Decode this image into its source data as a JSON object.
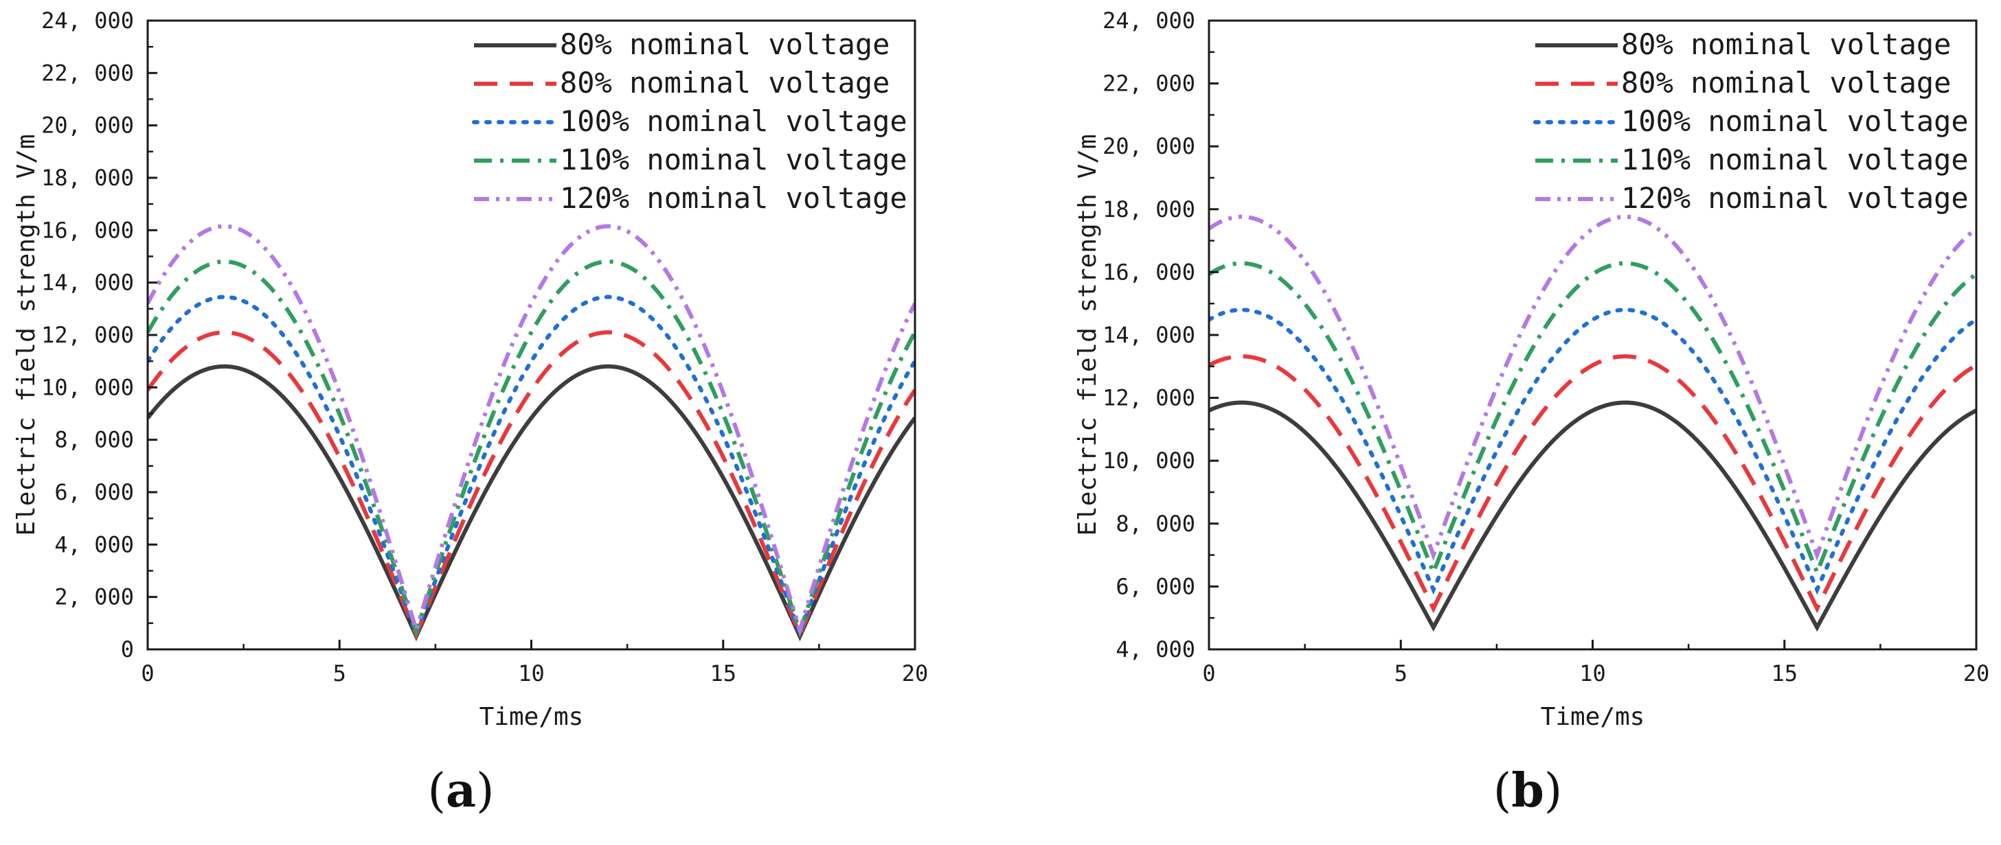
{
  "chart_data": [
    {
      "type": "line",
      "panel_label": "a",
      "xlabel": "Time/ms",
      "ylabel": "Electric field strength V/m",
      "xlim": [
        0,
        20
      ],
      "ylim": [
        0,
        24000
      ],
      "x_ticks": [
        0,
        5,
        10,
        15,
        20
      ],
      "y_ticks": [
        0,
        2000,
        4000,
        6000,
        8000,
        10000,
        12000,
        14000,
        16000,
        18000,
        20000,
        22000,
        24000
      ],
      "y_tick_labels": [
        "0",
        "2, 000",
        "4, 000",
        "6, 000",
        "8, 000",
        "10, 000",
        "12, 000",
        "14, 000",
        "16, 000",
        "18, 000",
        "20, 000",
        "22, 000",
        "24, 000"
      ],
      "legend_position": "top-right",
      "waveform": {
        "period_ms": 10,
        "peak_time_ms": 2,
        "trough_time_ms": 7
      },
      "series": [
        {
          "name": "80% nominal voltage",
          "style": "solid",
          "color": "#3d3d3d",
          "peak": 10800,
          "trough": 500
        },
        {
          "name": "80% nominal voltage",
          "style": "dash",
          "color": "#e8383d",
          "peak": 12100,
          "trough": 560
        },
        {
          "name": "100% nominal voltage",
          "style": "dot",
          "color": "#1f6fd6",
          "peak": 13450,
          "trough": 620
        },
        {
          "name": "110% nominal voltage",
          "style": "dashdot",
          "color": "#2f9e5e",
          "peak": 14800,
          "trough": 680
        },
        {
          "name": "120% nominal voltage",
          "style": "dashdotdot",
          "color": "#b478e6",
          "peak": 16150,
          "trough": 740
        }
      ]
    },
    {
      "type": "line",
      "panel_label": "b",
      "xlabel": "Time/ms",
      "ylabel": "Electric field strength V/m",
      "xlim": [
        0,
        20
      ],
      "ylim": [
        4000,
        24000
      ],
      "x_ticks": [
        0,
        5,
        10,
        15,
        20
      ],
      "y_ticks": [
        4000,
        6000,
        8000,
        10000,
        12000,
        14000,
        16000,
        18000,
        20000,
        22000,
        24000
      ],
      "y_tick_labels": [
        "4, 000",
        "6, 000",
        "8, 000",
        "10, 000",
        "12, 000",
        "14, 000",
        "16, 000",
        "18, 000",
        "20, 000",
        "22, 000",
        "24, 000"
      ],
      "legend_position": "top-right",
      "waveform": {
        "period_ms": 10,
        "peak_time_ms": 0.85,
        "trough_time_ms": 5.8
      },
      "series": [
        {
          "name": "80% nominal voltage",
          "style": "solid",
          "color": "#3d3d3d",
          "peak": 11850,
          "trough": 4700
        },
        {
          "name": "80% nominal voltage",
          "style": "dash",
          "color": "#e8383d",
          "peak": 13320,
          "trough": 5300
        },
        {
          "name": "100% nominal voltage",
          "style": "dot",
          "color": "#1f6fd6",
          "peak": 14800,
          "trough": 5900
        },
        {
          "name": "110% nominal voltage",
          "style": "dashdot",
          "color": "#2f9e5e",
          "peak": 16280,
          "trough": 6450
        },
        {
          "name": "120% nominal voltage",
          "style": "dashdotdot",
          "color": "#b478e6",
          "peak": 17760,
          "trough": 7000
        }
      ]
    }
  ]
}
